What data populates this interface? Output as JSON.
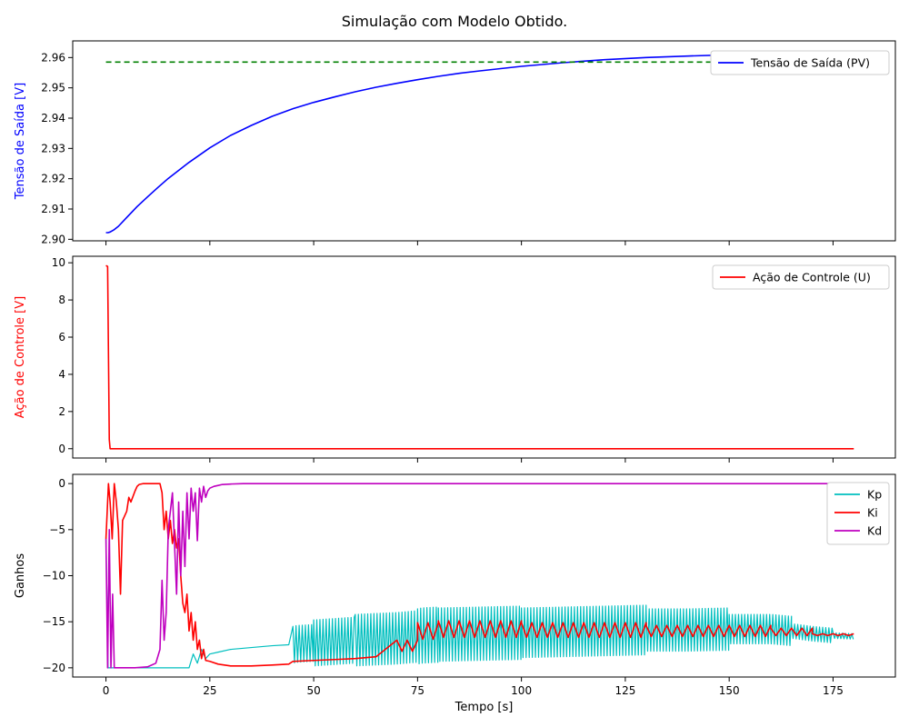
{
  "figure_title": "Simulação com Modelo Obtido.",
  "colors": {
    "pv": "#0000ff",
    "setpoint": "#008000",
    "u": "#ff0000",
    "kp": "#00bfbf",
    "ki": "#ff0000",
    "kd": "#bf00bf"
  },
  "chart_data": [
    {
      "type": "line",
      "ylabel": "Tensão de Saída [V]",
      "ylabel_color": "#0000ff",
      "xlim": [
        -8,
        190
      ],
      "ylim": [
        2.8995,
        2.9655
      ],
      "yticks": [
        2.9,
        2.91,
        2.92,
        2.93,
        2.94,
        2.95,
        2.96
      ],
      "ytick_labels": [
        "2.90",
        "2.91",
        "2.92",
        "2.93",
        "2.94",
        "2.95",
        "2.96"
      ],
      "xticks": [
        0,
        25,
        50,
        75,
        100,
        125,
        150,
        175
      ],
      "show_xtick_labels": false,
      "legend_position": "top-right",
      "series": [
        {
          "name": "Tensão de Saída (PV)",
          "color": "#0000ff",
          "style": "solid",
          "x": [
            0,
            0.5,
            1,
            2,
            3,
            5,
            7.5,
            10,
            12.5,
            15,
            20,
            25,
            30,
            35,
            40,
            45,
            50,
            55,
            60,
            65,
            70,
            75,
            80,
            85,
            90,
            100,
            110,
            120,
            130,
            140,
            150,
            160,
            170,
            180
          ],
          "y": [
            2.9022,
            2.9022,
            2.9024,
            2.9032,
            2.9043,
            2.9072,
            2.9108,
            2.914,
            2.9171,
            2.9201,
            2.9254,
            2.9302,
            2.9343,
            2.9376,
            2.9406,
            2.9431,
            2.9452,
            2.947,
            2.9487,
            2.9502,
            2.9515,
            2.9527,
            2.9538,
            2.9548,
            2.9556,
            2.9571,
            2.9583,
            2.9593,
            2.96,
            2.9605,
            2.9609,
            2.9611,
            2.9612,
            2.9613
          ]
        },
        {
          "name": "",
          "color": "#008000",
          "style": "dashed",
          "x": [
            0,
            180
          ],
          "y": [
            2.9585,
            2.9585
          ]
        }
      ]
    },
    {
      "type": "line",
      "ylabel": "Ação de Controle [V]",
      "ylabel_color": "#ff0000",
      "xlim": [
        -8,
        190
      ],
      "ylim": [
        -0.5,
        10.35
      ],
      "yticks": [
        0,
        2,
        4,
        6,
        8,
        10
      ],
      "ytick_labels": [
        "0",
        "2",
        "4",
        "6",
        "8",
        "10"
      ],
      "xticks": [
        0,
        25,
        50,
        75,
        100,
        125,
        150,
        175
      ],
      "show_xtick_labels": false,
      "legend_position": "top-right",
      "series": [
        {
          "name": "Ação de Controle (U)",
          "color": "#ff0000",
          "style": "solid",
          "x": [
            0,
            0.4,
            0.8,
            1.0,
            180
          ],
          "y": [
            9.85,
            9.8,
            0.5,
            0.0,
            0.0
          ]
        }
      ]
    },
    {
      "type": "line",
      "ylabel": "Ganhos",
      "ylabel_color": "#000000",
      "xlabel": "Tempo [s]",
      "xlim": [
        -8,
        190
      ],
      "ylim": [
        -21,
        1
      ],
      "yticks": [
        -20,
        -15,
        -10,
        -5,
        0
      ],
      "ytick_labels": [
        "−20",
        "−15",
        "−10",
        "−5",
        "0"
      ],
      "xticks": [
        0,
        25,
        50,
        75,
        100,
        125,
        150,
        175
      ],
      "xtick_labels": [
        "0",
        "25",
        "50",
        "75",
        "100",
        "125",
        "150",
        "175"
      ],
      "legend_position": "top-right",
      "series": [
        {
          "name": "Kp",
          "color": "#00bfbf",
          "style": "solid",
          "x": [
            0,
            0.5,
            1,
            2,
            5,
            10,
            15,
            20,
            21,
            22,
            23,
            24,
            25,
            27,
            30,
            35,
            40,
            44,
            45,
            46,
            50,
            60,
            70,
            75,
            76,
            80,
            90,
            100,
            110,
            120,
            130,
            140,
            150,
            160,
            165,
            170,
            175,
            180
          ],
          "y": [
            -5.5,
            -20,
            -20,
            -20,
            -20,
            -20,
            -20,
            -20,
            -18.5,
            -19.5,
            -18,
            -19,
            -18.5,
            -18.3,
            -18.0,
            -17.8,
            -17.6,
            -17.5,
            -17.5,
            -17.4,
            -17.3,
            -17.0,
            -16.8,
            -16.6,
            -16.5,
            -16.4,
            -16.3,
            -16.2,
            -16.1,
            -16.0,
            -15.9,
            -15.9,
            -15.8,
            -15.8,
            -16.0,
            -16.3,
            -16.5,
            -16.6
          ],
          "oscillation": {
            "x_ranges": [
              [
                45,
                50
              ],
              [
                50,
                60
              ],
              [
                60,
                75
              ],
              [
                75,
                80
              ],
              [
                80,
                100
              ],
              [
                100,
                130
              ],
              [
                130,
                150
              ],
              [
                150,
                165
              ],
              [
                165,
                175
              ],
              [
                175,
                180
              ]
            ],
            "amplitudes": [
              2.0,
              2.5,
              2.8,
              3.0,
              2.9,
              2.7,
              2.3,
              1.6,
              0.8,
              0.3
            ],
            "period": 0.75
          }
        },
        {
          "name": "Ki",
          "color": "#ff0000",
          "style": "solid",
          "x": [
            0,
            0.3,
            0.6,
            1,
            1.5,
            2,
            2.5,
            3,
            3.5,
            4,
            5,
            5.5,
            6,
            7,
            7.5,
            8,
            9,
            10,
            11,
            12,
            13,
            13.5,
            14,
            14.5,
            15,
            15.5,
            16,
            16.5,
            17,
            17.5,
            18,
            18.5,
            19,
            19.5,
            20,
            20.5,
            21,
            21.5,
            22,
            22.5,
            23,
            23.5,
            24,
            25,
            27,
            30,
            35,
            40,
            44,
            45,
            50,
            55,
            60,
            65,
            70,
            72,
            74,
            76
          ],
          "y": [
            -6,
            -3,
            0,
            -2,
            -6,
            0,
            -2,
            -5,
            -12,
            -4,
            -3,
            -1.5,
            -2,
            -0.8,
            -0.3,
            -0.1,
            0,
            0,
            0,
            0,
            0,
            -1,
            -5,
            -3,
            -6,
            -4,
            -6.5,
            -5,
            -7,
            -6,
            -10,
            -13,
            -14,
            -12,
            -16,
            -14,
            -17,
            -15,
            -18,
            -17,
            -19,
            -18,
            -19.2,
            -19.3,
            -19.6,
            -19.8,
            -19.8,
            -19.7,
            -19.6,
            -19.3,
            -19.2,
            -19.1,
            -19.0,
            -18.8,
            -18.4,
            -18.0,
            -17.6,
            -17.0
          ],
          "oscillation": {
            "x_ranges": [
              [
                70,
                75
              ],
              [
                75,
                80
              ],
              [
                80,
                100
              ],
              [
                100,
                130
              ],
              [
                130,
                160
              ],
              [
                160,
                170
              ],
              [
                170,
                180
              ]
            ],
            "center": [
              -17.6,
              -16.0,
              -15.8,
              -15.9,
              -16.0,
              -16.1,
              -16.4
            ],
            "amplitudes": [
              0.6,
              0.9,
              0.9,
              0.8,
              0.6,
              0.4,
              0.1
            ],
            "period": 2.5
          }
        },
        {
          "name": "Kd",
          "color": "#bf00bf",
          "style": "solid",
          "x": [
            0,
            0.4,
            0.8,
            1.2,
            1.6,
            2,
            2.5,
            3,
            4,
            5,
            7,
            10,
            12,
            13,
            13.5,
            14,
            14.5,
            15,
            16,
            17,
            17.5,
            18,
            18.5,
            19,
            19.5,
            20,
            20.5,
            21,
            21.5,
            22,
            22.5,
            23,
            23.5,
            24,
            24.5,
            25,
            26,
            27,
            28,
            30,
            33,
            36,
            40,
            50,
            60,
            80,
            100,
            130,
            160,
            180
          ],
          "y": [
            -6,
            -20,
            -5,
            -20,
            -12,
            -20,
            -20,
            -20,
            -20,
            -20,
            -20,
            -19.9,
            -19.5,
            -18,
            -10.5,
            -17,
            -14,
            -5,
            -1,
            -12,
            -2,
            -10,
            -3,
            -9,
            -1,
            -6,
            -0.5,
            -3,
            -1,
            -6.2,
            -0.5,
            -2,
            -0.3,
            -1.5,
            -0.8,
            -0.5,
            -0.3,
            -0.2,
            -0.1,
            -0.05,
            0,
            0,
            0,
            0,
            0,
            0,
            0,
            0,
            0,
            0
          ]
        }
      ]
    }
  ]
}
